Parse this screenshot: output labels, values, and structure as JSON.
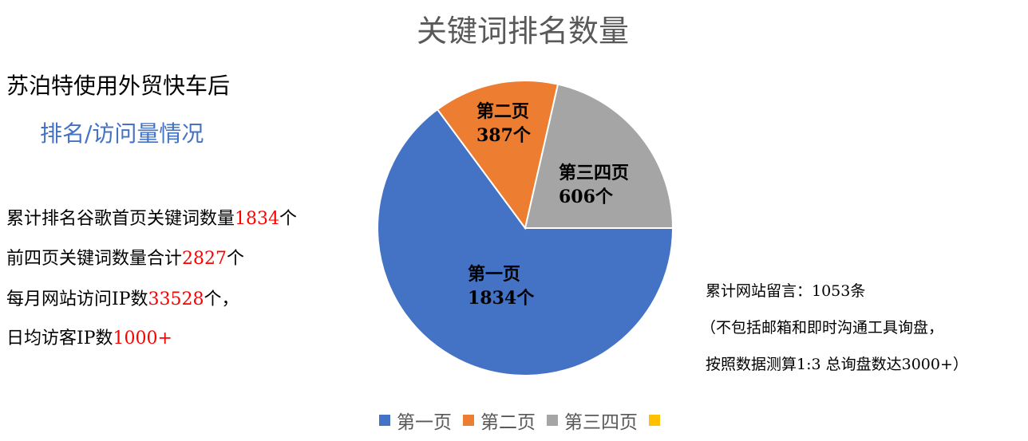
{
  "chart_data": {
    "type": "pie",
    "title": "关键词排名数量",
    "categories": [
      "第一页",
      "第二页",
      "第三四页",
      ""
    ],
    "values": [
      1834,
      387,
      606,
      0
    ],
    "data_labels": [
      [
        "第一页",
        "1834个"
      ],
      [
        "第二页",
        "387个"
      ],
      [
        "第三四页",
        "606个"
      ]
    ],
    "colors": [
      "#4472C4",
      "#ED7D31",
      "#A5A5A5",
      "#FFC000"
    ],
    "start_angle": "3 o'clock, clockwise",
    "legend": "bottom"
  },
  "left": {
    "heading": "苏泊特使用外贸快车后",
    "subheading": "排名/访问量情况",
    "stats": [
      {
        "pre": "累计排名谷歌首页关键词数量",
        "num": "1834",
        "post": "个"
      },
      {
        "pre": "前四页关键词数量合计",
        "num": "2827",
        "post": "个"
      },
      {
        "pre": "每月网站访问IP数",
        "num": "33528",
        "post": "个，"
      },
      {
        "pre": "日均访客IP数",
        "num": "1000+",
        "post": ""
      }
    ]
  },
  "notes": [
    "累计网站留言：1053条",
    "（不包括邮箱和即时沟通工具询盘，",
    "按照数据测算1:3 总询盘数达3000+）"
  ]
}
